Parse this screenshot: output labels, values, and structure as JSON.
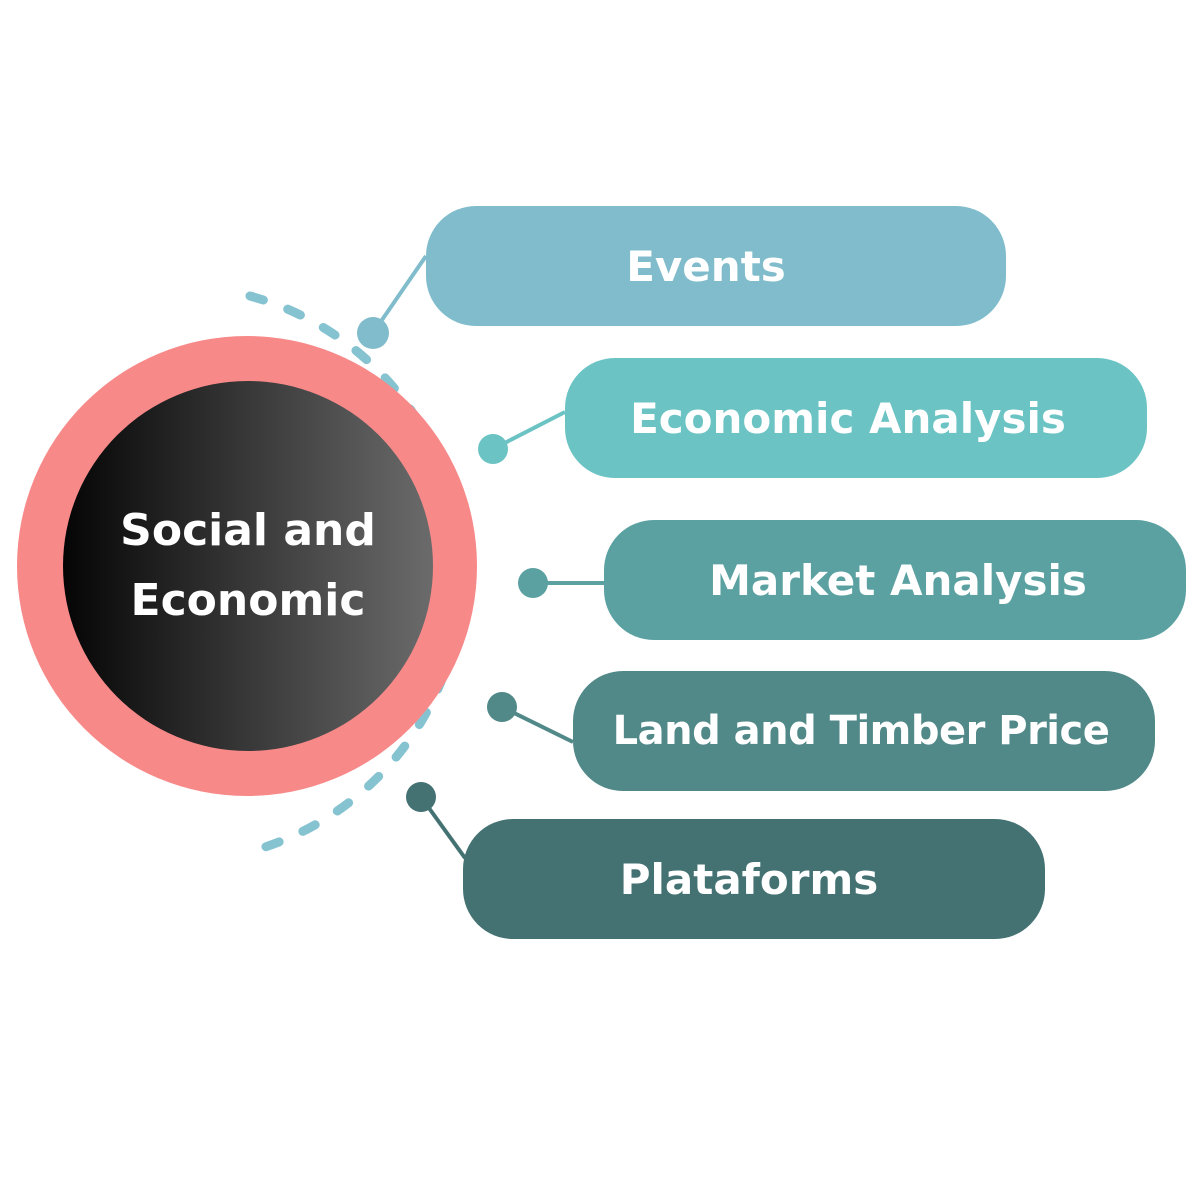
{
  "hub": {
    "line1": "Social and",
    "line2": "Economic",
    "ring_color": "#f88989",
    "core_gradient_start": "#050505",
    "core_gradient_end": "#6b6b6b"
  },
  "branches": [
    {
      "label": "Events",
      "color": "#80bccb"
    },
    {
      "label": "Economic Analysis",
      "color": "#6bc3c4"
    },
    {
      "label": "Market Analysis",
      "color": "#5ba1a1"
    },
    {
      "label": "Land and Timber Price",
      "color": "#518888"
    },
    {
      "label": "Plataforms",
      "color": "#447272"
    }
  ],
  "arc_color": "#86c3d1"
}
